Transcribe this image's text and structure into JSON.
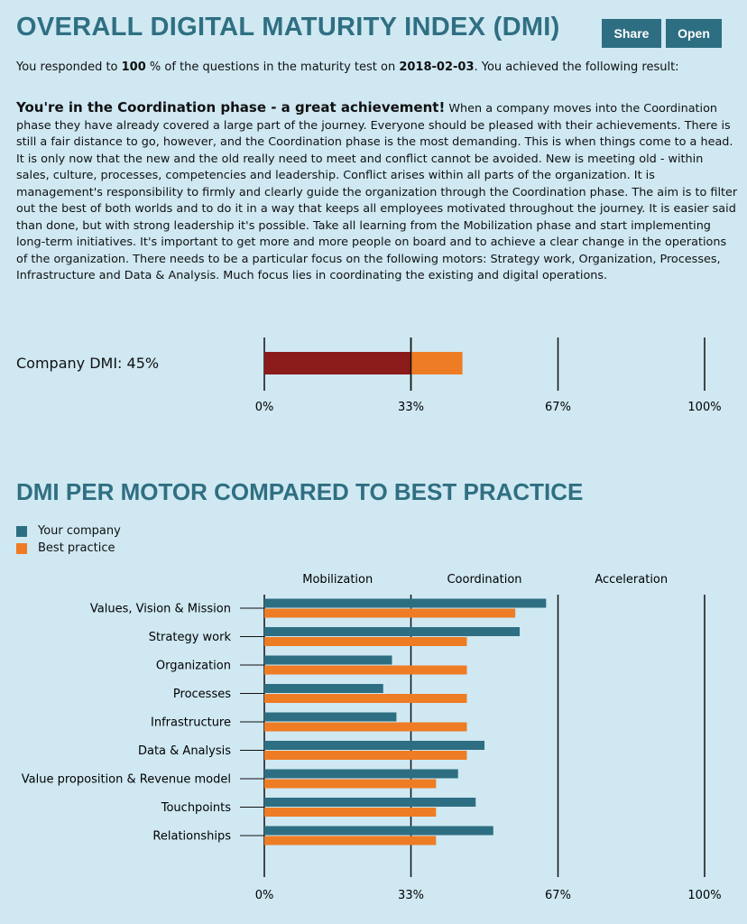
{
  "header": {
    "title": "OVERALL DIGITAL MATURITY INDEX (DMI)",
    "share_label": "Share",
    "open_label": "Open"
  },
  "intro": {
    "prefix": "You responded to",
    "percent": "100",
    "mid": "% of the questions in the maturity test on",
    "date": "2018-02-03",
    "suffix": ". You achieved the following result:"
  },
  "description": {
    "heading": "You're in the Coordination phase - a great achievement!",
    "body": "When a company moves into the Coordination phase they have already covered a large part of the journey. Everyone should be pleased with their achievements. There is still a fair distance to go, however, and the Coordination phase is the most demanding. This is when things come to a head. It is only now that the new and the old really need to meet and conflict cannot be avoided. New is meeting old - within sales, culture, processes, competencies and leadership. Conflict arises within all parts of the organization. It is management's responsibility to firmly and clearly guide the organization through the Coordination phase. The aim is to filter out the best of both worlds and to do it in a way that keeps all employees motivated throughout the journey. It is easier said than done, but with strong leadership it's possible. Take all learning from the Mobilization phase and start implementing long-term initiatives. It's important to get more and more people on board and to achieve a clear change in the operations of the organization. There needs to be a particular focus on the following motors: Strategy work, Organization, Processes, Infrastructure and Data & Analysis. Much focus lies in coordinating the existing and digital operations."
  },
  "chart_data": [
    {
      "type": "bar",
      "label": "Company DMI: 45%",
      "value": 45,
      "threshold": 33.3,
      "colors": {
        "below": "#8b1a1a",
        "above": "#ee7c24"
      },
      "xlim": [
        0,
        100
      ],
      "ticks": [
        {
          "value": 0,
          "label": "0%"
        },
        {
          "value": 33.3,
          "label": "33%"
        },
        {
          "value": 66.7,
          "label": "67%"
        },
        {
          "value": 100,
          "label": "100%"
        }
      ]
    },
    {
      "type": "bar",
      "orientation": "horizontal",
      "title": "DMI PER MOTOR COMPARED TO BEST PRACTICE",
      "categories": [
        "Values, Vision & Mission",
        "Strategy work",
        "Organization",
        "Processes",
        "Infrastructure",
        "Data & Analysis",
        "Value proposition & Revenue model",
        "Touchpoints",
        "Relationships"
      ],
      "series": [
        {
          "name": "Your company",
          "color": "#2e6e82",
          "values": [
            64,
            58,
            29,
            27,
            30,
            50,
            44,
            48,
            52
          ]
        },
        {
          "name": "Best practice",
          "color": "#ee7c24",
          "values": [
            57,
            46,
            46,
            46,
            46,
            46,
            39,
            39,
            39
          ]
        }
      ],
      "phases": [
        "Mobilization",
        "Coordination",
        "Acceleration"
      ],
      "xlim": [
        0,
        100
      ],
      "legend": "top-left",
      "ticks": [
        {
          "value": 0,
          "label": "0%"
        },
        {
          "value": 33.3,
          "label": "33%"
        },
        {
          "value": 66.7,
          "label": "67%"
        },
        {
          "value": 100,
          "label": "100%"
        }
      ]
    }
  ]
}
